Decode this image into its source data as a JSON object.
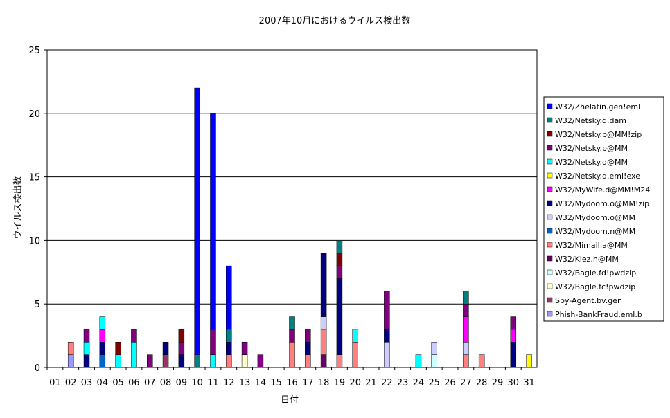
{
  "chart_data": {
    "type": "bar",
    "stacked": true,
    "title": "2007年10月におけるウイルス検出数",
    "xlabel": "日付",
    "ylabel": "ウイルス検出数",
    "ylim": [
      0,
      25
    ],
    "yticks": [
      0,
      5,
      10,
      15,
      20,
      25
    ],
    "grid": true,
    "legend_position": "right",
    "categories": [
      "01",
      "02",
      "03",
      "04",
      "05",
      "06",
      "07",
      "08",
      "09",
      "10",
      "11",
      "12",
      "13",
      "14",
      "15",
      "16",
      "17",
      "18",
      "19",
      "20",
      "21",
      "22",
      "23",
      "24",
      "25",
      "26",
      "27",
      "28",
      "29",
      "30",
      "31"
    ],
    "series": [
      {
        "name": "Phish-BankFraud.eml.b",
        "color": "#9999ff",
        "values": [
          0,
          1,
          0,
          0,
          0,
          0,
          0,
          0,
          0,
          0,
          0,
          0,
          0,
          0,
          0,
          0,
          0,
          0,
          0,
          0,
          0,
          0,
          0,
          0,
          0,
          0,
          0,
          0,
          0,
          0,
          0
        ]
      },
      {
        "name": "Spy-Agent.bv.gen",
        "color": "#993366",
        "values": [
          0,
          0,
          0,
          0,
          0,
          0,
          0,
          1,
          0,
          0,
          0,
          0,
          0,
          0,
          0,
          0,
          0,
          0,
          0,
          0,
          0,
          0,
          0,
          0,
          0,
          0,
          0,
          0,
          0,
          0,
          0
        ]
      },
      {
        "name": "W32/Bagle.fc!pwdzip",
        "color": "#ffffcc",
        "values": [
          0,
          0,
          0,
          0,
          0,
          0,
          0,
          0,
          0,
          0,
          0,
          0,
          1,
          0,
          0,
          0,
          0,
          0,
          0,
          0,
          0,
          0,
          0,
          0,
          0,
          0,
          0,
          0,
          0,
          0,
          0
        ]
      },
      {
        "name": "W32/Bagle.fd!pwdzip",
        "color": "#ccffff",
        "values": [
          0,
          0,
          0,
          0,
          0,
          0,
          0,
          0,
          0,
          0,
          0,
          0,
          0,
          0,
          0,
          0,
          0,
          0,
          0,
          0,
          0,
          0,
          0,
          0,
          1,
          0,
          0,
          0,
          0,
          0,
          0
        ]
      },
      {
        "name": "W32/Klez.h@MM",
        "color": "#660066",
        "values": [
          0,
          0,
          0,
          0,
          0,
          0,
          0,
          0,
          0,
          0,
          0,
          0,
          0,
          0,
          0,
          0,
          0,
          1,
          0,
          0,
          0,
          0,
          0,
          0,
          0,
          0,
          0,
          0,
          0,
          0,
          0
        ]
      },
      {
        "name": "W32/Mimail.a@MM",
        "color": "#ff8080",
        "values": [
          0,
          1,
          0,
          0,
          0,
          0,
          0,
          0,
          0,
          0,
          0,
          1,
          0,
          0,
          0,
          2,
          1,
          2,
          1,
          2,
          0,
          0,
          0,
          0,
          0,
          0,
          1,
          1,
          0,
          0,
          0
        ]
      },
      {
        "name": "W32/Mydoom.n@MM",
        "color": "#0066cc",
        "values": [
          0,
          0,
          0,
          1,
          0,
          0,
          0,
          0,
          0,
          0,
          0,
          0,
          0,
          0,
          0,
          0,
          0,
          0,
          0,
          0,
          0,
          0,
          0,
          0,
          0,
          0,
          0,
          0,
          0,
          0,
          0
        ]
      },
      {
        "name": "W32/Mydoom.o@MM",
        "color": "#ccccff",
        "values": [
          0,
          0,
          0,
          0,
          0,
          0,
          0,
          0,
          0,
          0,
          0,
          0,
          0,
          0,
          0,
          0,
          0,
          1,
          0,
          0,
          0,
          2,
          0,
          0,
          1,
          0,
          1,
          0,
          0,
          0,
          0
        ]
      },
      {
        "name": "W32/Mydoom.o@MM!zip",
        "color": "#000080",
        "values": [
          0,
          0,
          1,
          1,
          0,
          0,
          0,
          1,
          1,
          0,
          0,
          1,
          0,
          0,
          0,
          0,
          1,
          5,
          6,
          0,
          0,
          1,
          0,
          0,
          0,
          0,
          0,
          0,
          0,
          2,
          0
        ]
      },
      {
        "name": "W32/MyWife.d@MM!M24",
        "color": "#ff00ff",
        "values": [
          0,
          0,
          0,
          1,
          0,
          0,
          0,
          0,
          0,
          0,
          0,
          0,
          0,
          0,
          0,
          0,
          0,
          0,
          0,
          0,
          0,
          0,
          0,
          0,
          0,
          0,
          2,
          0,
          0,
          1,
          0
        ]
      },
      {
        "name": "W32/Netsky.d.eml!exe",
        "color": "#ffff00",
        "values": [
          0,
          0,
          0,
          0,
          0,
          0,
          0,
          0,
          0,
          0,
          0,
          0,
          0,
          0,
          0,
          0,
          0,
          0,
          0,
          0,
          0,
          0,
          0,
          0,
          0,
          0,
          0,
          0,
          0,
          0,
          1
        ]
      },
      {
        "name": "W32/Netsky.d@MM",
        "color": "#00ffff",
        "values": [
          0,
          0,
          1,
          1,
          1,
          2,
          0,
          0,
          0,
          0,
          1,
          0,
          0,
          0,
          0,
          0,
          0,
          0,
          0,
          1,
          0,
          0,
          0,
          1,
          0,
          0,
          0,
          0,
          0,
          0,
          0
        ]
      },
      {
        "name": "W32/Netsky.p@MM",
        "color": "#800080",
        "values": [
          0,
          0,
          1,
          0,
          0,
          1,
          1,
          0,
          1,
          0,
          2,
          0,
          1,
          1,
          0,
          1,
          1,
          0,
          1,
          0,
          0,
          3,
          0,
          0,
          0,
          0,
          1,
          0,
          0,
          1,
          0
        ]
      },
      {
        "name": "W32/Netsky.p@MM!zip",
        "color": "#800000",
        "values": [
          0,
          0,
          0,
          0,
          1,
          0,
          0,
          0,
          1,
          0,
          0,
          0,
          0,
          0,
          0,
          0,
          0,
          0,
          1,
          0,
          0,
          0,
          0,
          0,
          0,
          0,
          0,
          0,
          0,
          0,
          0
        ]
      },
      {
        "name": "W32/Netsky.q.dam",
        "color": "#008080",
        "values": [
          0,
          0,
          0,
          0,
          0,
          0,
          0,
          0,
          0,
          1,
          0,
          1,
          0,
          0,
          0,
          1,
          0,
          0,
          1,
          0,
          0,
          0,
          0,
          0,
          0,
          0,
          1,
          0,
          0,
          0,
          0
        ]
      },
      {
        "name": "W32/Zhelatin.gen!eml",
        "color": "#0000ff",
        "values": [
          0,
          0,
          0,
          0,
          0,
          0,
          0,
          0,
          0,
          21,
          17,
          5,
          0,
          0,
          0,
          0,
          0,
          0,
          0,
          0,
          0,
          0,
          0,
          0,
          0,
          0,
          0,
          0,
          0,
          0,
          0
        ]
      }
    ]
  }
}
